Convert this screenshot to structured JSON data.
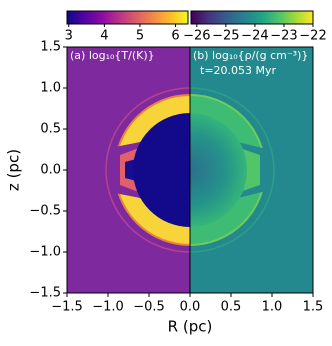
{
  "chart_data": {
    "type": "image",
    "xlabel": "R (pc)",
    "ylabel": "z (pc)",
    "xlim": [
      -1.5,
      1.5
    ],
    "ylim": [
      -1.5,
      1.5
    ],
    "xticks": [
      {
        "value": -1.5,
        "label": "−1.5"
      },
      {
        "value": -1.0,
        "label": "−1.0"
      },
      {
        "value": -0.5,
        "label": "−0.5"
      },
      {
        "value": 0,
        "label": "0.0"
      },
      0.5,
      {
        "value": 1.0,
        "label": "1.0"
      },
      1.5
    ],
    "yticks": [
      {
        "value": -1.5,
        "label": "−1.5"
      },
      {
        "value": -1.0,
        "label": "−1.0"
      },
      {
        "value": -0.5,
        "label": "−0.5"
      },
      {
        "value": 0,
        "label": "0.0"
      },
      0.5,
      {
        "value": 1.0,
        "label": "1.0"
      },
      1.5
    ],
    "annotations": [
      "(a) log₁₀{T/(K)}",
      "(b) log₁₀{ρ/(g cm⁻³)}",
      "t=20.053 Myr"
    ],
    "colorbars": [
      {
        "cmap": "plasma",
        "lim": [
          2.95,
          6.35
        ],
        "ticks": [
          3,
          4,
          5,
          6
        ]
      },
      {
        "cmap": "viridis",
        "lim": [
          -26.2,
          -22
        ],
        "ticks": [
          {
            "value": -26,
            "label": "−26"
          },
          {
            "value": -25,
            "label": "−25"
          },
          {
            "value": -24,
            "label": "−24"
          },
          {
            "value": -23,
            "label": "−23"
          },
          {
            "value": -22,
            "label": "−22"
          }
        ]
      }
    ]
  }
}
